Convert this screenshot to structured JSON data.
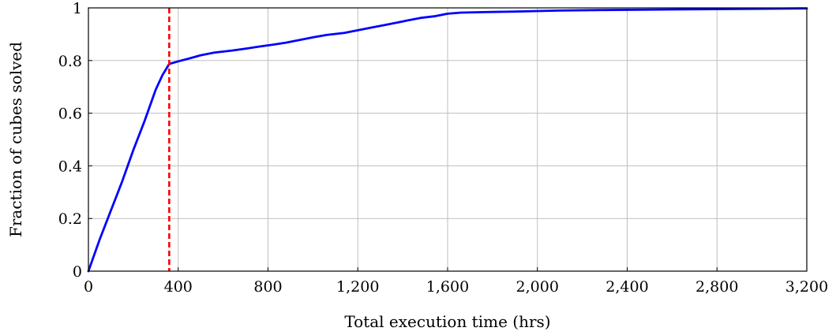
{
  "chart_data": {
    "type": "line",
    "title": "",
    "xlabel": "Total execution time (hrs)",
    "ylabel": "Fraction of cubes solved",
    "xlim": [
      0,
      3200
    ],
    "ylim": [
      0,
      1
    ],
    "grid": true,
    "x_ticks": [
      0,
      400,
      800,
      1200,
      1600,
      2000,
      2400,
      2800,
      3200
    ],
    "x_tick_labels": [
      "0",
      "400",
      "800",
      "1,200",
      "1,600",
      "2,000",
      "2,400",
      "2,800",
      "3,200"
    ],
    "y_ticks": [
      0,
      0.2,
      0.4,
      0.6,
      0.8,
      1
    ],
    "y_tick_labels": [
      "0",
      "0.2",
      "0.4",
      "0.6",
      "0.8",
      "1"
    ],
    "series": [
      {
        "color": "#0000ff",
        "x": [
          0,
          50,
          100,
          150,
          200,
          250,
          300,
          330,
          360,
          400,
          450,
          500,
          560,
          640,
          700,
          760,
          820,
          880,
          940,
          1000,
          1060,
          1140,
          1200,
          1260,
          1320,
          1380,
          1420,
          1480,
          1540,
          1600,
          1660,
          1760,
          1900,
          2000,
          2100,
          2300,
          2600,
          2900,
          3200
        ],
        "y": [
          0,
          0.12,
          0.23,
          0.34,
          0.46,
          0.57,
          0.69,
          0.745,
          0.787,
          0.797,
          0.808,
          0.82,
          0.83,
          0.838,
          0.845,
          0.853,
          0.86,
          0.868,
          0.878,
          0.888,
          0.897,
          0.905,
          0.915,
          0.925,
          0.935,
          0.945,
          0.952,
          0.962,
          0.968,
          0.978,
          0.982,
          0.984,
          0.986,
          0.988,
          0.99,
          0.992,
          0.994,
          0.996,
          0.998
        ]
      }
    ],
    "vertical_reference_line": {
      "x": 360,
      "color": "#ff0000",
      "style": "dashed"
    }
  }
}
